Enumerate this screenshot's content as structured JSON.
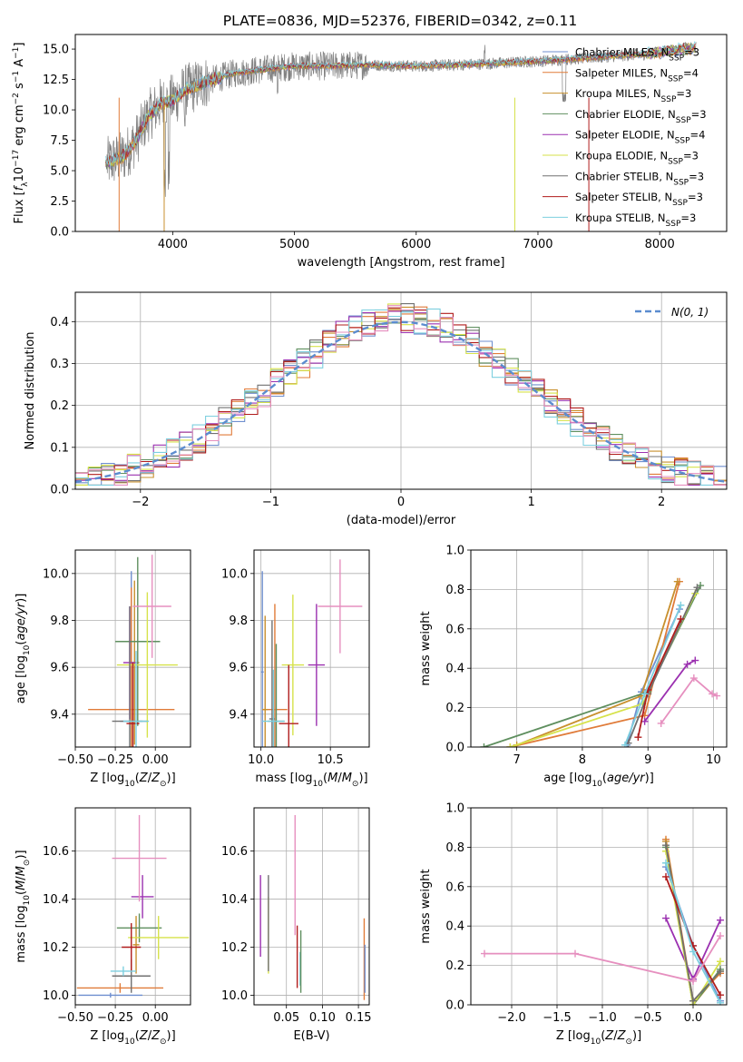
{
  "figure_title": "PLATE=0836, MJD=52376, FIBERID=0342, z=0.11",
  "colors": {
    "Chabrier MILES": "#6f8fcf",
    "Salpeter MILES": "#e07b39",
    "Kroupa MILES": "#c8902e",
    "Chabrier ELODIE": "#5f8f5f",
    "Salpeter ELODIE": "#9b30b0",
    "Kroupa ELODIE": "#d6e24a",
    "Chabrier STELIB": "#707070",
    "Salpeter STELIB": "#b01c1c",
    "Kroupa STELIB": "#7dcfdf",
    "pink": "#e68fbf",
    "normal": "#5b8ccf"
  },
  "chart_data": [
    {
      "type": "line",
      "title": "PLATE=0836, MJD=52376, FIBERID=0342, z=0.11",
      "xlabel": "wavelength [Angstrom, rest frame]",
      "ylabel": "Flux [f_λ 10^-17 erg cm^-2 s^-1 A^-1]",
      "xlim": [
        3200,
        8550
      ],
      "ylim": [
        0,
        16.2
      ],
      "xticks": [
        4000,
        5000,
        6000,
        7000,
        8000
      ],
      "yticks": [
        0.0,
        2.5,
        5.0,
        7.5,
        10.0,
        12.5,
        15.0
      ],
      "legend": "top-right",
      "continuum": [
        [
          3450,
          5.6
        ],
        [
          3600,
          6.2
        ],
        [
          3700,
          7.5
        ],
        [
          3800,
          9.5
        ],
        [
          3900,
          10.5
        ],
        [
          4000,
          10.8
        ],
        [
          4100,
          11.6
        ],
        [
          4300,
          12.4
        ],
        [
          4500,
          13.0
        ],
        [
          4800,
          13.4
        ],
        [
          5000,
          13.6
        ],
        [
          5300,
          13.6
        ],
        [
          5600,
          13.7
        ],
        [
          6000,
          13.6
        ],
        [
          6300,
          13.7
        ],
        [
          6600,
          13.8
        ],
        [
          7000,
          14.0
        ],
        [
          7300,
          14.2
        ],
        [
          7600,
          14.4
        ],
        [
          7900,
          14.6
        ],
        [
          8100,
          14.9
        ],
        [
          8300,
          15.1
        ]
      ],
      "series": [
        {
          "name": "Chabrier MILES",
          "nssp": "3"
        },
        {
          "name": "Salpeter MILES",
          "nssp": "4"
        },
        {
          "name": "Kroupa MILES",
          "nssp": "3"
        },
        {
          "name": "Chabrier ELODIE",
          "nssp": "3"
        },
        {
          "name": "Salpeter ELODIE",
          "nssp": "4"
        },
        {
          "name": "Kroupa ELODIE",
          "nssp": "3"
        },
        {
          "name": "Chabrier STELIB",
          "nssp": "3"
        },
        {
          "name": "Salpeter STELIB",
          "nssp": "3"
        },
        {
          "name": "Kroupa STELIB",
          "nssp": "3"
        }
      ]
    },
    {
      "type": "histogram",
      "xlabel": "(data-model)/error",
      "ylabel": "Normed distribution",
      "xlim": [
        -2.5,
        2.5
      ],
      "ylim": [
        0,
        0.47
      ],
      "xticks": [
        -2,
        -1,
        0,
        1,
        2
      ],
      "yticks": [
        0.0,
        0.1,
        0.2,
        0.3,
        0.4
      ],
      "bin_width": 0.1,
      "legend": "top-right",
      "reference_curve": {
        "name": "N(0, 1)",
        "mean": 0,
        "sigma": 1
      }
    },
    {
      "type": "scatter",
      "xlabel": "Z [log10(Z/Z⊙)]",
      "ylabel": "age  [log10(age/yr)]",
      "xlim": [
        -0.5,
        0.22
      ],
      "ylim": [
        9.26,
        10.1
      ],
      "xticks": [
        -0.5,
        -0.25,
        0.0
      ],
      "yticks": [
        9.4,
        9.6,
        9.8,
        10.0
      ],
      "points": [
        {
          "series": "Chabrier MILES",
          "x": -0.15,
          "y": 9.37,
          "xerr": 0.07,
          "yerr": 0.64
        },
        {
          "series": "Salpeter MILES",
          "x": -0.15,
          "y": 9.42,
          "xerr": 0.27,
          "yerr": 0.52
        },
        {
          "series": "Kroupa MILES",
          "x": -0.13,
          "y": 9.62,
          "xerr": 0.03,
          "yerr": 0.35
        },
        {
          "series": "Chabrier ELODIE",
          "x": -0.11,
          "y": 9.71,
          "xerr": 0.14,
          "yerr": 0.36
        },
        {
          "series": "Salpeter ELODIE",
          "x": -0.16,
          "y": 9.62,
          "xerr": 0.04,
          "yerr": 0.24
        },
        {
          "series": "Kroupa ELODIE",
          "x": -0.05,
          "y": 9.61,
          "xerr": 0.19,
          "yerr": 0.31
        },
        {
          "series": "Chabrier STELIB",
          "x": -0.16,
          "y": 9.37,
          "xerr": 0.11,
          "yerr": 0.49
        },
        {
          "series": "Salpeter STELIB",
          "x": -0.14,
          "y": 9.36,
          "xerr": 0.04,
          "yerr": 0.26
        },
        {
          "series": "Kroupa STELIB",
          "x": -0.12,
          "y": 9.37,
          "xerr": 0.08,
          "yerr": 0.3
        },
        {
          "series": "pink",
          "x": -0.02,
          "y": 9.86,
          "xerr": 0.12,
          "yerr": 0.22
        }
      ]
    },
    {
      "type": "scatter",
      "xlabel": "mass [log10(M/M⊙)]",
      "ylabel": "",
      "xlim": [
        9.95,
        10.78
      ],
      "ylim": [
        9.26,
        10.1
      ],
      "xticks": [
        10.0,
        10.5
      ],
      "yticks": [
        9.4,
        9.6,
        9.8,
        10.0
      ],
      "points": [
        {
          "series": "Chabrier MILES",
          "x": 10.01,
          "y": 9.58,
          "xerr": 0.01,
          "yerr": 0.43
        },
        {
          "series": "Salpeter MILES",
          "x": 10.1,
          "y": 9.42,
          "xerr": 0.09,
          "yerr": 0.45
        },
        {
          "series": "Kroupa MILES",
          "x": 10.03,
          "y": 9.42,
          "xerr": 0.02,
          "yerr": 0.4
        },
        {
          "series": "Chabrier ELODIE",
          "x": 10.11,
          "y": 9.37,
          "xerr": 0.06,
          "yerr": 0.33
        },
        {
          "series": "Salpeter ELODIE",
          "x": 10.4,
          "y": 9.61,
          "xerr": 0.06,
          "yerr": 0.26
        },
        {
          "series": "Kroupa ELODIE",
          "x": 10.23,
          "y": 9.61,
          "xerr": 0.08,
          "yerr": 0.3
        },
        {
          "series": "Chabrier STELIB",
          "x": 10.08,
          "y": 9.38,
          "xerr": 0.02,
          "yerr": 0.42
        },
        {
          "series": "Salpeter STELIB",
          "x": 10.2,
          "y": 9.36,
          "xerr": 0.07,
          "yerr": 0.25
        },
        {
          "series": "Kroupa STELIB",
          "x": 10.09,
          "y": 9.37,
          "xerr": 0.08,
          "yerr": 0.22
        },
        {
          "series": "pink",
          "x": 10.57,
          "y": 9.86,
          "xerr": 0.16,
          "yerr": 0.2
        }
      ]
    },
    {
      "type": "line",
      "xlabel": "age  [log10(age/yr)]",
      "ylabel": "mass weight",
      "xlim": [
        6.3,
        10.2
      ],
      "ylim": [
        0,
        1.0
      ],
      "xticks": [
        7,
        8,
        9,
        10
      ],
      "yticks": [
        0.0,
        0.2,
        0.4,
        0.6,
        0.8,
        1.0
      ],
      "series": [
        {
          "name": "Chabrier MILES",
          "x": [
            8.68,
            8.9,
            9.48
          ],
          "y": [
            0.01,
            0.28,
            0.7
          ]
        },
        {
          "name": "Salpeter MILES",
          "x": [
            6.9,
            8.95,
            9.48
          ],
          "y": [
            0.0,
            0.16,
            0.84
          ]
        },
        {
          "name": "Kroupa MILES",
          "x": [
            7.0,
            8.9,
            9.45
          ],
          "y": [
            0.01,
            0.26,
            0.84
          ]
        },
        {
          "name": "Chabrier ELODIE",
          "x": [
            6.5,
            9.0,
            9.8
          ],
          "y": [
            0.0,
            0.28,
            0.82
          ]
        },
        {
          "name": "Salpeter ELODIE",
          "x": [
            8.95,
            9.6,
            9.72
          ],
          "y": [
            0.13,
            0.42,
            0.44
          ]
        },
        {
          "name": "Kroupa ELODIE",
          "x": [
            6.9,
            8.92,
            9.72
          ],
          "y": [
            0.0,
            0.22,
            0.78
          ]
        },
        {
          "name": "Chabrier STELIB",
          "x": [
            8.7,
            9.0,
            9.75
          ],
          "y": [
            0.02,
            0.27,
            0.81
          ]
        },
        {
          "name": "Salpeter STELIB",
          "x": [
            8.85,
            9.0,
            9.5
          ],
          "y": [
            0.05,
            0.29,
            0.65
          ]
        },
        {
          "name": "Kroupa STELIB",
          "x": [
            8.65,
            8.95,
            9.5
          ],
          "y": [
            0.01,
            0.27,
            0.72
          ]
        },
        {
          "name": "pink",
          "x": [
            9.2,
            9.7,
            9.98,
            10.05
          ],
          "y": [
            0.12,
            0.35,
            0.27,
            0.26
          ]
        }
      ]
    },
    {
      "type": "scatter",
      "xlabel": "Z [log10(Z/Z⊙)]",
      "ylabel": "mass [log10(M/M⊙)]",
      "xlim": [
        -0.5,
        0.22
      ],
      "ylim": [
        9.96,
        10.78
      ],
      "xticks": [
        -0.5,
        -0.25,
        0.0
      ],
      "yticks": [
        10.0,
        10.2,
        10.4,
        10.6
      ],
      "points": [
        {
          "series": "Chabrier MILES",
          "x": -0.28,
          "y": 10.0,
          "xerr": 0.2,
          "yerr": 0.01
        },
        {
          "series": "Salpeter MILES",
          "x": -0.22,
          "y": 10.03,
          "xerr": 0.27,
          "yerr": 0.02
        },
        {
          "series": "Kroupa MILES",
          "x": -0.12,
          "y": 10.21,
          "xerr": 0.02,
          "yerr": 0.12
        },
        {
          "series": "Chabrier ELODIE",
          "x": -0.1,
          "y": 10.28,
          "xerr": 0.14,
          "yerr": 0.06
        },
        {
          "series": "Salpeter ELODIE",
          "x": -0.08,
          "y": 10.41,
          "xerr": 0.07,
          "yerr": 0.09
        },
        {
          "series": "Kroupa ELODIE",
          "x": 0.02,
          "y": 10.24,
          "xerr": 0.19,
          "yerr": 0.09
        },
        {
          "series": "Chabrier STELIB",
          "x": -0.15,
          "y": 10.08,
          "xerr": 0.12,
          "yerr": 0.07
        },
        {
          "series": "Salpeter STELIB",
          "x": -0.15,
          "y": 10.2,
          "xerr": 0.06,
          "yerr": 0.1
        },
        {
          "series": "Kroupa STELIB",
          "x": -0.2,
          "y": 10.1,
          "xerr": 0.08,
          "yerr": 0.02
        },
        {
          "series": "pink",
          "x": -0.1,
          "y": 10.57,
          "xerr": 0.17,
          "yerr": 0.18
        }
      ]
    },
    {
      "type": "scatter",
      "xlabel": "E(B-V)",
      "ylabel": "",
      "xlim": [
        0.005,
        0.165
      ],
      "ylim": [
        9.96,
        10.78
      ],
      "xticks": [
        0.05,
        0.1,
        0.15
      ],
      "yticks": [
        10.0,
        10.2,
        10.4,
        10.6
      ],
      "points": [
        {
          "series": "Salpeter ELODIE",
          "x": 0.014,
          "y": 10.33,
          "yerr": 0.17
        },
        {
          "series": "Kroupa ELODIE",
          "x": 0.025,
          "y": 10.25,
          "yerr": 0.16
        },
        {
          "series": "Chabrier STELIB",
          "x": 0.025,
          "y": 10.3,
          "yerr": 0.2
        },
        {
          "series": "pink",
          "x": 0.062,
          "y": 10.5,
          "yerr": 0.25
        },
        {
          "series": "Salpeter STELIB",
          "x": 0.065,
          "y": 10.16,
          "yerr": 0.13
        },
        {
          "series": "Kroupa STELIB",
          "x": 0.069,
          "y": 10.11,
          "yerr": 0.07
        },
        {
          "series": "Chabrier ELODIE",
          "x": 0.07,
          "y": 10.14,
          "yerr": 0.13
        },
        {
          "series": "Salpeter MILES",
          "x": 0.158,
          "y": 10.15,
          "yerr": 0.17
        },
        {
          "series": "Chabrier MILES",
          "x": 0.159,
          "y": 10.11,
          "yerr": 0.1
        }
      ]
    },
    {
      "type": "line",
      "xlabel": "Z [log10(Z/Z⊙)]",
      "ylabel": "mass weight",
      "xlim": [
        -2.45,
        0.37
      ],
      "ylim": [
        0,
        1.0
      ],
      "xticks": [
        -2.0,
        -1.5,
        -1.0,
        -0.5,
        0.0
      ],
      "yticks": [
        0.0,
        0.2,
        0.4,
        0.6,
        0.8,
        1.0
      ],
      "series": [
        {
          "name": "Chabrier MILES",
          "x": [
            -0.3,
            0.0,
            0.3
          ],
          "y": [
            0.7,
            0.3,
            0.02
          ]
        },
        {
          "name": "Salpeter MILES",
          "x": [
            -0.3,
            0.0,
            0.3
          ],
          "y": [
            0.84,
            0.02,
            0.16
          ]
        },
        {
          "name": "Kroupa MILES",
          "x": [
            -0.3,
            0.0,
            0.3
          ],
          "y": [
            0.83,
            0.0,
            0.17
          ]
        },
        {
          "name": "Chabrier ELODIE",
          "x": [
            -0.3,
            0.0,
            0.3
          ],
          "y": [
            0.8,
            0.0,
            0.18
          ]
        },
        {
          "name": "Salpeter ELODIE",
          "x": [
            -0.3,
            0.0,
            0.3
          ],
          "y": [
            0.44,
            0.13,
            0.43
          ]
        },
        {
          "name": "Kroupa ELODIE",
          "x": [
            -0.3,
            0.0,
            0.3
          ],
          "y": [
            0.78,
            0.0,
            0.22
          ]
        },
        {
          "name": "Chabrier STELIB",
          "x": [
            -0.3,
            0.0,
            0.3
          ],
          "y": [
            0.81,
            0.02,
            0.17
          ]
        },
        {
          "name": "Salpeter STELIB",
          "x": [
            -0.3,
            0.0,
            0.3
          ],
          "y": [
            0.65,
            0.3,
            0.05
          ]
        },
        {
          "name": "Kroupa STELIB",
          "x": [
            -0.3,
            0.0,
            0.3
          ],
          "y": [
            0.72,
            0.27,
            0.01
          ]
        },
        {
          "name": "pink",
          "x": [
            -2.3,
            -1.3,
            0.0,
            0.3
          ],
          "y": [
            0.26,
            0.26,
            0.12,
            0.35
          ]
        }
      ]
    }
  ]
}
